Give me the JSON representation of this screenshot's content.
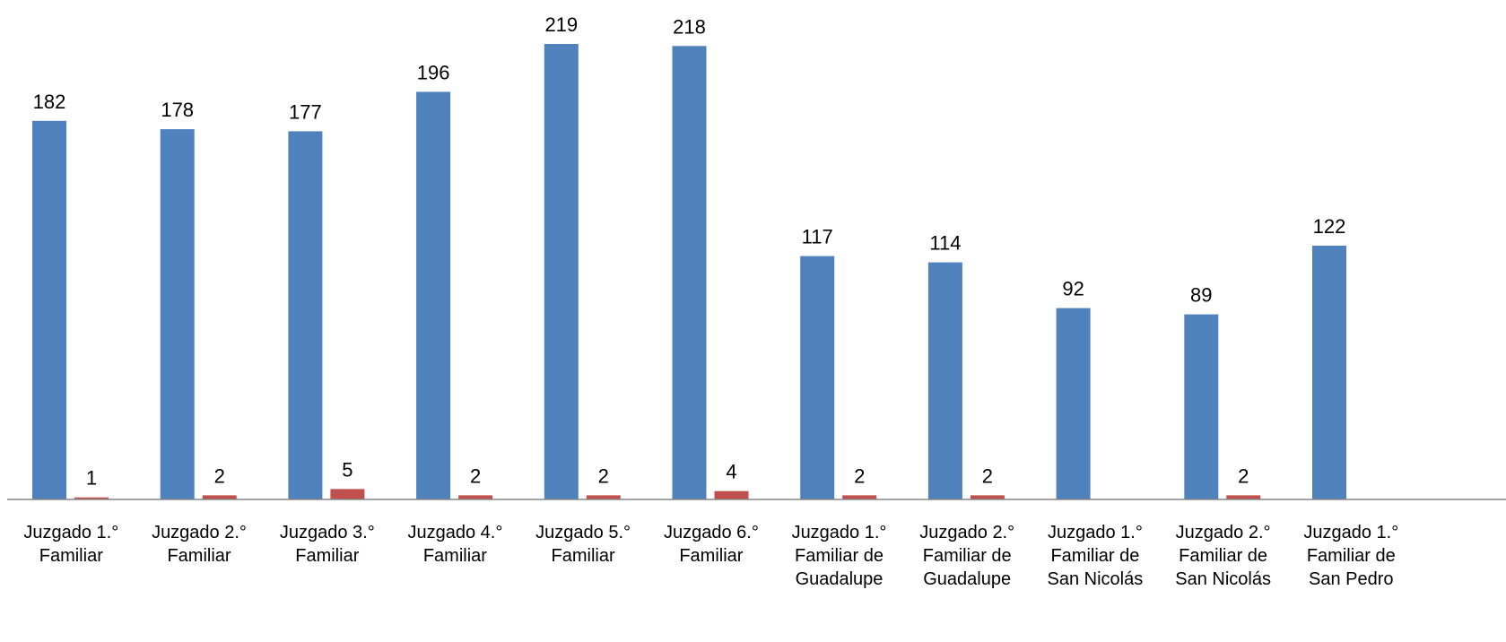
{
  "chart_data": {
    "type": "bar",
    "title": "",
    "xlabel": "",
    "ylabel": "",
    "ylim": [
      0,
      230
    ],
    "grid": false,
    "legend": "none",
    "categories": [
      [
        "Juzgado 1.°",
        "Familiar"
      ],
      [
        "Juzgado 2.°",
        "Familiar"
      ],
      [
        "Juzgado 3.°",
        "Familiar"
      ],
      [
        "Juzgado 4.°",
        "Familiar"
      ],
      [
        "Juzgado 5.°",
        "Familiar"
      ],
      [
        "Juzgado 6.°",
        "Familiar"
      ],
      [
        "Juzgado 1.°",
        "Familiar de",
        "Guadalupe"
      ],
      [
        "Juzgado 2.°",
        "Familiar de",
        "Guadalupe"
      ],
      [
        "Juzgado 1.°",
        "Familiar de",
        "San Nicolás"
      ],
      [
        "Juzgado 2.°",
        "Familiar de",
        "San Nicolás"
      ],
      [
        "Juzgado 1.°",
        "Familiar de",
        "San Pedro"
      ]
    ],
    "series": [
      {
        "color": "#4F81BD",
        "values": [
          182,
          178,
          177,
          196,
          219,
          218,
          117,
          114,
          92,
          89,
          122
        ]
      },
      {
        "color": "#C0504D",
        "values": [
          1,
          2,
          5,
          2,
          2,
          4,
          2,
          2,
          null,
          2,
          null
        ]
      }
    ]
  }
}
